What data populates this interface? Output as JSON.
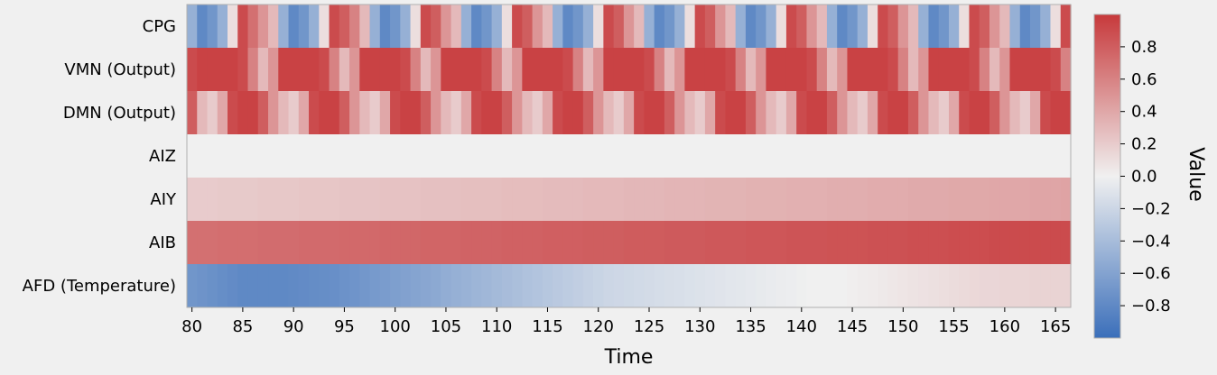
{
  "chart_data": {
    "type": "heatmap",
    "xlabel": "Time",
    "xlim": [
      79.5,
      166.5
    ],
    "xticks": [
      80,
      85,
      90,
      95,
      100,
      105,
      110,
      115,
      120,
      125,
      130,
      135,
      140,
      145,
      150,
      155,
      160,
      165
    ],
    "rows": [
      "CPG",
      "VMN (Output)",
      "DMN (Output)",
      "AIZ",
      "AIY",
      "AIB",
      "AFD (Temperature)"
    ],
    "colorbar": {
      "label": "Value",
      "range": [
        -1.0,
        1.0
      ],
      "ticks": [
        -0.8,
        -0.6,
        -0.4,
        -0.2,
        0.0,
        0.2,
        0.4,
        0.6,
        0.8
      ],
      "colormap": "coolwarm",
      "colors": {
        "low": "#3b6fba",
        "mid": "#f0f0f0",
        "high": "#c7393b"
      }
    },
    "cell_columns": [
      {
        "start": 80,
        "step": 1
      },
      {
        "start": 80,
        "step": 1
      },
      {
        "start": 80,
        "step": 1
      },
      {
        "start": 80,
        "step": 1
      },
      {
        "start": 80,
        "step": 1
      },
      {
        "start": 80,
        "step": 1
      },
      {
        "start": 80,
        "step": 1
      }
    ],
    "values": {
      "CPG": [
        -0.5,
        -0.8,
        -0.7,
        -0.5,
        0.1,
        0.9,
        0.7,
        0.5,
        0.3,
        -0.5,
        -0.8,
        -0.7,
        -0.5,
        0.1,
        0.9,
        0.8,
        0.6,
        0.3,
        -0.5,
        -0.8,
        -0.7,
        -0.5,
        0.1,
        0.9,
        0.8,
        0.5,
        0.3,
        -0.5,
        -0.8,
        -0.7,
        -0.5,
        0.1,
        0.9,
        0.8,
        0.5,
        0.3,
        -0.5,
        -0.8,
        -0.7,
        -0.5,
        0.1,
        0.9,
        0.8,
        0.5,
        0.3,
        -0.5,
        -0.8,
        -0.7,
        -0.5,
        0.1,
        0.9,
        0.8,
        0.5,
        0.3,
        -0.5,
        -0.8,
        -0.7,
        -0.5,
        0.1,
        0.9,
        0.8,
        0.5,
        0.3,
        -0.5,
        -0.8,
        -0.7,
        -0.5,
        0.1,
        0.9,
        0.8,
        0.5,
        0.3,
        -0.5,
        -0.8,
        -0.7,
        -0.5,
        0.1,
        0.9,
        0.8,
        0.5,
        0.3,
        -0.5,
        -0.8,
        -0.7,
        -0.5,
        0.1,
        0.9
      ],
      "VMN (Output)": [
        0.9,
        0.95,
        0.95,
        0.95,
        0.95,
        0.9,
        0.6,
        0.3,
        0.5,
        0.95,
        0.95,
        0.95,
        0.95,
        0.9,
        0.6,
        0.3,
        0.5,
        0.95,
        0.95,
        0.95,
        0.95,
        0.9,
        0.6,
        0.3,
        0.5,
        0.95,
        0.95,
        0.95,
        0.95,
        0.9,
        0.6,
        0.3,
        0.5,
        0.95,
        0.95,
        0.95,
        0.95,
        0.9,
        0.6,
        0.3,
        0.5,
        0.95,
        0.95,
        0.95,
        0.95,
        0.9,
        0.6,
        0.3,
        0.5,
        0.95,
        0.95,
        0.95,
        0.95,
        0.9,
        0.6,
        0.3,
        0.5,
        0.95,
        0.95,
        0.95,
        0.95,
        0.9,
        0.6,
        0.3,
        0.5,
        0.95,
        0.95,
        0.95,
        0.95,
        0.9,
        0.6,
        0.3,
        0.5,
        0.95,
        0.95,
        0.95,
        0.95,
        0.9,
        0.6,
        0.3,
        0.5,
        0.95,
        0.95,
        0.95,
        0.95,
        0.9,
        0.6
      ],
      "DMN (Output)": [
        0.8,
        0.3,
        0.2,
        0.4,
        0.9,
        0.95,
        0.95,
        0.8,
        0.5,
        0.3,
        0.2,
        0.4,
        0.9,
        0.95,
        0.95,
        0.8,
        0.5,
        0.3,
        0.2,
        0.4,
        0.9,
        0.95,
        0.95,
        0.8,
        0.5,
        0.3,
        0.2,
        0.4,
        0.9,
        0.95,
        0.95,
        0.8,
        0.5,
        0.3,
        0.2,
        0.4,
        0.9,
        0.95,
        0.95,
        0.8,
        0.5,
        0.3,
        0.2,
        0.4,
        0.9,
        0.95,
        0.95,
        0.8,
        0.5,
        0.3,
        0.2,
        0.4,
        0.9,
        0.95,
        0.95,
        0.8,
        0.5,
        0.3,
        0.2,
        0.4,
        0.9,
        0.95,
        0.95,
        0.8,
        0.5,
        0.3,
        0.2,
        0.4,
        0.9,
        0.95,
        0.95,
        0.8,
        0.5,
        0.3,
        0.2,
        0.4,
        0.9,
        0.95,
        0.95,
        0.8,
        0.5,
        0.3,
        0.2,
        0.4,
        0.9,
        0.95,
        0.95
      ],
      "AIZ": [
        0.0,
        0.0,
        0.0,
        0.0,
        0.0,
        0.0,
        0.0,
        0.0,
        0.0,
        0.0,
        0.0,
        0.0,
        0.0,
        0.0,
        0.0,
        0.0,
        0.0,
        0.0,
        0.0,
        0.0,
        0.0,
        0.0,
        0.0,
        0.0,
        0.0,
        0.0,
        0.0,
        0.0,
        0.0,
        0.0,
        0.0,
        0.0,
        0.0,
        0.0,
        0.0,
        0.0,
        0.0,
        0.0,
        0.0,
        0.0,
        0.0,
        0.0,
        0.0,
        0.0,
        0.0,
        0.0,
        0.0,
        0.0,
        0.0,
        0.0,
        0.0,
        0.0,
        0.0,
        0.0,
        0.0,
        0.0,
        0.0,
        0.0,
        0.0,
        0.0,
        0.0,
        0.0,
        0.0,
        0.0,
        0.0,
        0.0,
        0.0,
        0.0,
        0.0,
        0.0,
        0.0,
        0.0,
        0.0,
        0.0,
        0.0,
        0.0,
        0.0,
        0.0,
        0.0,
        0.0,
        0.0,
        0.0,
        0.0,
        0.0,
        0.0,
        0.0,
        0.0
      ],
      "AIY": [
        0.2,
        0.2,
        0.2,
        0.21,
        0.21,
        0.21,
        0.21,
        0.22,
        0.22,
        0.22,
        0.22,
        0.23,
        0.23,
        0.23,
        0.23,
        0.24,
        0.24,
        0.24,
        0.24,
        0.25,
        0.25,
        0.25,
        0.25,
        0.26,
        0.26,
        0.26,
        0.26,
        0.27,
        0.27,
        0.27,
        0.27,
        0.28,
        0.28,
        0.28,
        0.28,
        0.29,
        0.29,
        0.29,
        0.29,
        0.3,
        0.3,
        0.3,
        0.3,
        0.31,
        0.31,
        0.31,
        0.31,
        0.32,
        0.32,
        0.32,
        0.32,
        0.33,
        0.33,
        0.33,
        0.33,
        0.34,
        0.34,
        0.34,
        0.34,
        0.35,
        0.35,
        0.35,
        0.35,
        0.36,
        0.36,
        0.36,
        0.36,
        0.37,
        0.37,
        0.37,
        0.37,
        0.38,
        0.38,
        0.38,
        0.38,
        0.39,
        0.39,
        0.39,
        0.39,
        0.4,
        0.4,
        0.4,
        0.4,
        0.41,
        0.41,
        0.41,
        0.42
      ],
      "AIB": [
        0.7,
        0.7,
        0.7,
        0.71,
        0.71,
        0.71,
        0.71,
        0.72,
        0.72,
        0.72,
        0.72,
        0.73,
        0.73,
        0.73,
        0.73,
        0.74,
        0.74,
        0.74,
        0.74,
        0.75,
        0.75,
        0.75,
        0.75,
        0.76,
        0.76,
        0.76,
        0.76,
        0.77,
        0.77,
        0.77,
        0.77,
        0.78,
        0.78,
        0.78,
        0.78,
        0.79,
        0.79,
        0.79,
        0.79,
        0.8,
        0.8,
        0.8,
        0.8,
        0.81,
        0.81,
        0.81,
        0.81,
        0.82,
        0.82,
        0.82,
        0.82,
        0.83,
        0.83,
        0.83,
        0.83,
        0.84,
        0.84,
        0.84,
        0.84,
        0.85,
        0.85,
        0.85,
        0.85,
        0.86,
        0.86,
        0.86,
        0.86,
        0.87,
        0.87,
        0.87,
        0.87,
        0.88,
        0.88,
        0.88,
        0.88,
        0.89,
        0.89,
        0.89,
        0.89,
        0.9,
        0.9,
        0.9,
        0.9,
        0.9,
        0.9,
        0.9,
        0.9
      ],
      "AFD (Temperature)": [
        -0.7,
        -0.72,
        -0.74,
        -0.76,
        -0.78,
        -0.8,
        -0.8,
        -0.8,
        -0.8,
        -0.8,
        -0.79,
        -0.78,
        -0.77,
        -0.76,
        -0.75,
        -0.73,
        -0.71,
        -0.69,
        -0.67,
        -0.65,
        -0.63,
        -0.61,
        -0.59,
        -0.57,
        -0.55,
        -0.52,
        -0.5,
        -0.48,
        -0.46,
        -0.44,
        -0.42,
        -0.4,
        -0.38,
        -0.36,
        -0.34,
        -0.32,
        -0.3,
        -0.28,
        -0.26,
        -0.24,
        -0.22,
        -0.2,
        -0.19,
        -0.18,
        -0.17,
        -0.16,
        -0.15,
        -0.14,
        -0.13,
        -0.12,
        -0.11,
        -0.1,
        -0.09,
        -0.08,
        -0.07,
        -0.06,
        -0.05,
        -0.04,
        -0.03,
        -0.02,
        -0.01,
        0.0,
        0.0,
        0.0,
        0.0,
        0.01,
        0.02,
        0.03,
        0.04,
        0.05,
        0.06,
        0.07,
        0.08,
        0.09,
        0.1,
        0.11,
        0.12,
        0.13,
        0.14,
        0.14,
        0.15,
        0.15,
        0.15,
        0.16,
        0.16,
        0.16,
        0.16
      ]
    }
  }
}
